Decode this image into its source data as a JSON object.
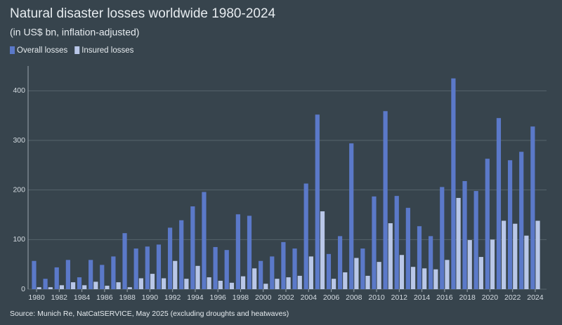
{
  "chart_data": {
    "type": "bar",
    "title": "Natural disaster losses worldwide 1980-2024",
    "subtitle": "(in US$ bn, inflation-adjusted)",
    "source": "Source: Munich Re, NatCatSERVICE, May 2025 (excluding droughts and heatwaves)",
    "categories": [
      "1980",
      null,
      "1982",
      null,
      "1984",
      null,
      "1986",
      null,
      "1988",
      null,
      "1990",
      null,
      "1992",
      null,
      "1994",
      null,
      "1996",
      null,
      "1998",
      null,
      "2000",
      null,
      "2002",
      null,
      "2004",
      null,
      "2006",
      null,
      "2008",
      null,
      "2010",
      null,
      "2012",
      null,
      "2014",
      null,
      "2016",
      null,
      "2018",
      null,
      "2020",
      null,
      "2022",
      null,
      "2024"
    ],
    "series": [
      {
        "name": "Overall losses",
        "color": "#5b79c9",
        "values": [
          57,
          21,
          44,
          59,
          24,
          59,
          49,
          66,
          113,
          82,
          86,
          90,
          124,
          139,
          167,
          196,
          85,
          79,
          151,
          148,
          57,
          66,
          95,
          82,
          213,
          352,
          71,
          107,
          294,
          82,
          187,
          359,
          188,
          164,
          127,
          107,
          206,
          425,
          218,
          198,
          263,
          345,
          260,
          277,
          328
        ]
      },
      {
        "name": "Insured losses",
        "color": "#b9c7e8",
        "values": [
          4,
          4,
          8,
          14,
          8,
          15,
          7,
          14,
          4,
          22,
          31,
          22,
          57,
          21,
          47,
          24,
          17,
          13,
          26,
          42,
          11,
          21,
          24,
          27,
          66,
          157,
          21,
          34,
          63,
          27,
          55,
          133,
          69,
          45,
          42,
          40,
          59,
          184,
          99,
          65,
          100,
          138,
          132,
          108,
          138
        ]
      }
    ],
    "ylim": [
      0,
      450
    ],
    "yticks": [
      0,
      100,
      200,
      300,
      400
    ],
    "grid": true
  }
}
